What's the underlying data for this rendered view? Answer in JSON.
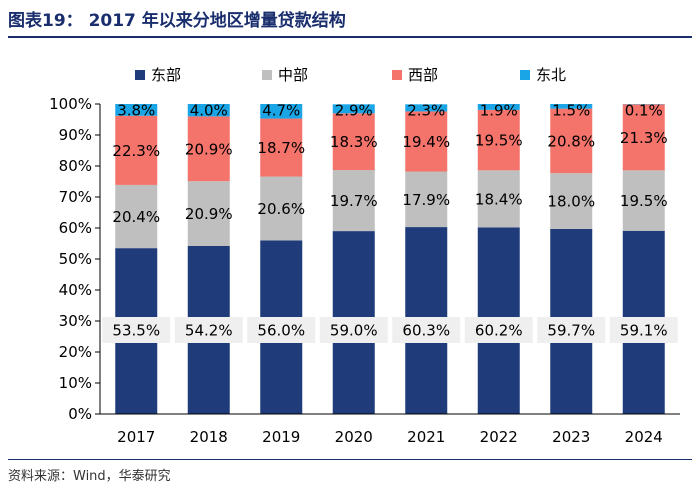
{
  "header": {
    "title": "图表19：  2017 年以来分地区增量贷款结构"
  },
  "footer": {
    "source": "资料来源：Wind，华泰研究"
  },
  "colors": {
    "east": "#1f3b7a",
    "central": "#bfbfbf",
    "west": "#f4736a",
    "northeast": "#1aa6e6",
    "title": "#1a2e6e"
  },
  "chart_data": {
    "type": "bar",
    "stacked": true,
    "percent": true,
    "title": "2017 年以来分地区增量贷款结构",
    "categories": [
      "2017",
      "2018",
      "2019",
      "2020",
      "2021",
      "2022",
      "2023",
      "2024"
    ],
    "series": [
      {
        "name": "东部",
        "values": [
          53.5,
          54.2,
          56.0,
          59.0,
          60.3,
          60.2,
          59.7,
          59.1
        ],
        "labels": [
          "53.5%",
          "54.2%",
          "56.0%",
          "59.0%",
          "60.3%",
          "60.2%",
          "59.7%",
          "59.1%"
        ]
      },
      {
        "name": "中部",
        "values": [
          20.4,
          20.9,
          20.6,
          19.7,
          17.9,
          18.4,
          18.0,
          19.5
        ],
        "labels": [
          "20.4%",
          "20.9%",
          "20.6%",
          "19.7%",
          "17.9%",
          "18.4%",
          "18.0%",
          "19.5%"
        ]
      },
      {
        "name": "西部",
        "values": [
          22.3,
          20.9,
          18.7,
          18.3,
          19.4,
          19.5,
          20.8,
          21.3
        ],
        "labels": [
          "22.3%",
          "20.9%",
          "18.7%",
          "18.3%",
          "19.4%",
          "19.5%",
          "20.8%",
          "21.3%"
        ]
      },
      {
        "name": "东北",
        "values": [
          3.8,
          4.0,
          4.7,
          2.9,
          2.3,
          1.9,
          1.5,
          0.1
        ],
        "labels": [
          "3.8%",
          "4.0%",
          "4.7%",
          "2.9%",
          "2.3%",
          "1.9%",
          "1.5%",
          "0.1%"
        ]
      }
    ],
    "ylim": [
      0,
      100
    ],
    "yticks": [
      "0%",
      "10%",
      "20%",
      "30%",
      "40%",
      "50%",
      "60%",
      "70%",
      "80%",
      "90%",
      "100%"
    ],
    "xlabel": "",
    "ylabel": "",
    "legend_position": "top"
  }
}
